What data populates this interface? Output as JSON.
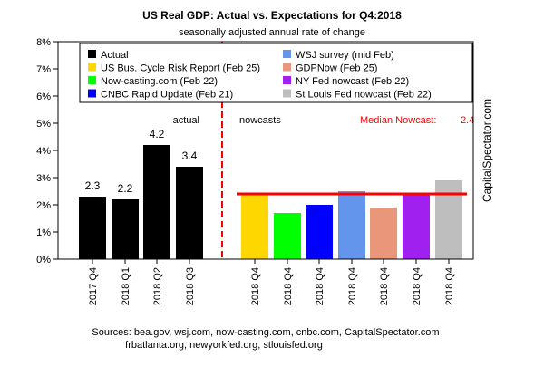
{
  "chart_data": {
    "type": "bar",
    "title": "US Real GDP: Actual vs. Expectations for Q4:2018",
    "subtitle": "seasonally adjusted annual rate of change",
    "ylim": [
      0,
      8
    ],
    "yticks": [
      "0%",
      "1%",
      "2%",
      "3%",
      "4%",
      "5%",
      "6%",
      "7%",
      "8%"
    ],
    "grid": false,
    "categories": [
      "2017 Q4",
      "2018 Q1",
      "2018 Q2",
      "2018 Q3",
      "2018 Q4",
      "2018 Q4",
      "2018 Q4",
      "2018 Q4",
      "2018 Q4",
      "2018 Q4",
      "2018 Q4"
    ],
    "bars": [
      {
        "value": 2.3,
        "color": "#000000",
        "data_label": "2.3"
      },
      {
        "value": 2.2,
        "color": "#000000",
        "data_label": "2.2"
      },
      {
        "value": 4.2,
        "color": "#000000",
        "data_label": "4.2"
      },
      {
        "value": 3.4,
        "color": "#000000",
        "data_label": "3.4"
      },
      {
        "value": 2.4,
        "color": "#ffd700",
        "data_label": ""
      },
      {
        "value": 1.7,
        "color": "#00ff00",
        "data_label": ""
      },
      {
        "value": 2.0,
        "color": "#0000ff",
        "data_label": ""
      },
      {
        "value": 2.5,
        "color": "#6495ed",
        "data_label": ""
      },
      {
        "value": 1.9,
        "color": "#e9967a",
        "data_label": ""
      },
      {
        "value": 2.4,
        "color": "#a020f0",
        "data_label": ""
      },
      {
        "value": 2.9,
        "color": "#bebebe",
        "data_label": ""
      }
    ],
    "legend": {
      "placement": "top",
      "entries": [
        {
          "label": "Actual",
          "color": "#000000"
        },
        {
          "label": "US Bus. Cycle Risk Report (Feb 25)",
          "color": "#ffd700"
        },
        {
          "label": "Now-casting.com (Feb 22)",
          "color": "#00ff00"
        },
        {
          "label": "CNBC Rapid Update (Feb 21)",
          "color": "#0000ff"
        },
        {
          "label": "WSJ survey (mid Feb)",
          "color": "#6495ed"
        },
        {
          "label": "GDPNow (Feb 25)",
          "color": "#e9967a"
        },
        {
          "label": "NY Fed nowcast (Feb 22)",
          "color": "#a020f0"
        },
        {
          "label": "St Louis Fed nowcast (Feb 22)",
          "color": "#bebebe"
        }
      ]
    },
    "annotations": {
      "actual_label": "actual",
      "nowcasts_label": "nowcasts",
      "median_label": "Median Nowcast:",
      "median_value_label": "2.4",
      "median_value": 2.4,
      "median_color": "#ff0000",
      "divider_color": "#ff0000",
      "side_label": "CapitalSpectator.com"
    },
    "sources": [
      "Sources: bea.gov, wsj.com, now-casting.com, cnbc.com, CapitalSpectator.com",
      "frbatlanta.org, newyorkfed.org, stlouisfed.org"
    ]
  }
}
